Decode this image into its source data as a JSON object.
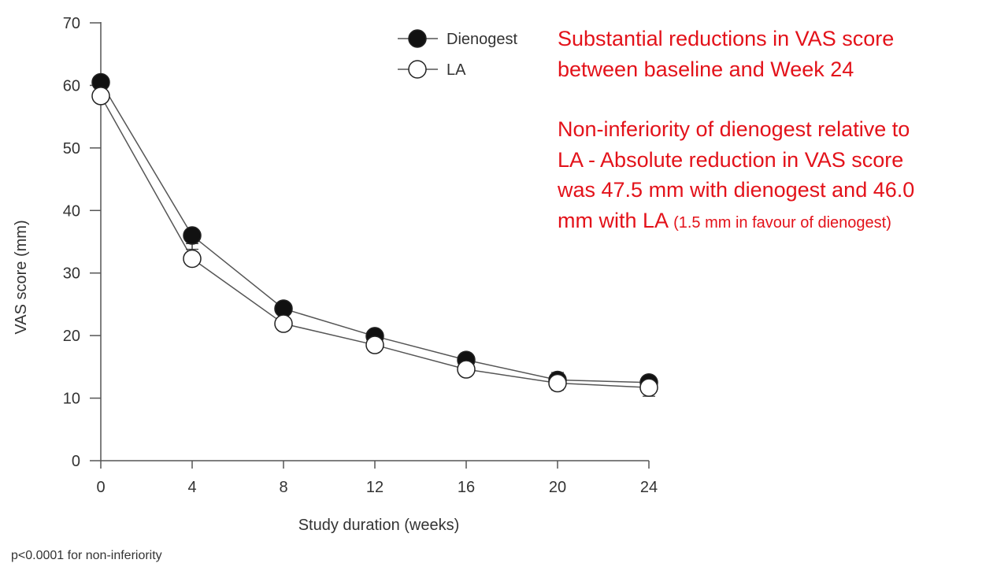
{
  "chart_data": {
    "type": "line",
    "title": "",
    "xlabel": "Study duration (weeks)",
    "ylabel": "VAS score (mm)",
    "x": [
      0,
      4,
      8,
      12,
      16,
      20,
      24
    ],
    "xticks": [
      "0",
      "4",
      "8",
      "12",
      "16",
      "20",
      "24"
    ],
    "yticks": [
      "0",
      "10",
      "20",
      "30",
      "40",
      "50",
      "60",
      "70"
    ],
    "xlim": [
      0,
      24
    ],
    "ylim": [
      0,
      70
    ],
    "grid": false,
    "legend_position": "top-right",
    "series": [
      {
        "name": "Dienogest",
        "marker": "filled-circle",
        "values": [
          60.5,
          36.0,
          24.3,
          19.9,
          16.1,
          12.9,
          12.5
        ],
        "error": [
          2.1,
          2.2,
          2.3,
          2.1,
          2.0,
          1.6,
          2.2
        ]
      },
      {
        "name": "LA",
        "marker": "open-circle",
        "values": [
          58.3,
          32.3,
          21.9,
          18.5,
          14.6,
          12.4,
          11.7
        ],
        "error": [
          2.4,
          2.4,
          2.5,
          2.2,
          2.0,
          1.7,
          1.8
        ]
      }
    ]
  },
  "annotations": {
    "line1": "Substantial reductions in VAS score",
    "line2": "between baseline and Week 24",
    "line3": "Non-inferiority of dienogest relative to",
    "line4": "LA - Absolute reduction in VAS score",
    "line5": "was 47.5 mm with dienogest and 46.0",
    "line6_main": "mm with LA",
    "line6_note": "(1.5 mm in favour of dienogest)"
  },
  "footnote": "p<0.0001 for non-inferiority",
  "colors": {
    "annotation_text": "#e3121a",
    "marker_filled": "#111111",
    "marker_open": "#ffffff",
    "line": "#555555"
  }
}
